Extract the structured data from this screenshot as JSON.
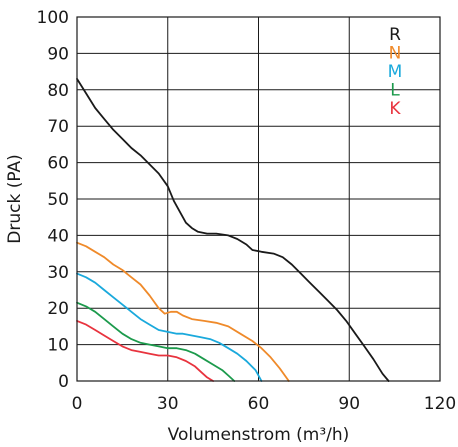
{
  "chart_data": {
    "type": "line",
    "title": "",
    "xlabel": "Volumenstrom (m³/h)",
    "ylabel": "Druck (PA)",
    "xlim": [
      0,
      120
    ],
    "ylim": [
      0,
      100
    ],
    "x_ticks": [
      "0",
      "30",
      "60",
      "90",
      "120"
    ],
    "y_ticks": [
      "0",
      "10",
      "20",
      "30",
      "40",
      "50",
      "60",
      "70",
      "80",
      "90",
      "100"
    ],
    "grid": true,
    "legend_position": "top-right",
    "series": [
      {
        "name": "R",
        "color": "#1a1a1a",
        "points": [
          [
            0,
            83
          ],
          [
            3,
            79
          ],
          [
            6,
            75
          ],
          [
            9,
            72
          ],
          [
            12,
            69
          ],
          [
            15,
            66.5
          ],
          [
            18,
            64
          ],
          [
            21,
            62
          ],
          [
            24,
            59.5
          ],
          [
            27,
            57
          ],
          [
            30,
            53.5
          ],
          [
            32,
            49.5
          ],
          [
            34,
            46.5
          ],
          [
            36,
            43.5
          ],
          [
            38,
            42
          ],
          [
            40,
            41
          ],
          [
            43,
            40.5
          ],
          [
            46,
            40.5
          ],
          [
            50,
            40
          ],
          [
            53,
            39
          ],
          [
            56,
            37.5
          ],
          [
            58,
            36
          ],
          [
            61,
            35.5
          ],
          [
            65,
            35
          ],
          [
            68,
            34
          ],
          [
            71,
            32
          ],
          [
            74,
            29.5
          ],
          [
            77,
            27
          ],
          [
            80,
            24.5
          ],
          [
            83,
            22
          ],
          [
            86,
            19.5
          ],
          [
            89,
            16.5
          ],
          [
            92,
            13
          ],
          [
            95,
            9.5
          ],
          [
            98,
            6
          ],
          [
            101,
            2
          ],
          [
            103,
            0
          ]
        ]
      },
      {
        "name": "N",
        "color": "#ef8a2a",
        "points": [
          [
            0,
            38
          ],
          [
            3,
            37
          ],
          [
            6,
            35.5
          ],
          [
            9,
            34
          ],
          [
            12,
            32
          ],
          [
            15,
            30.5
          ],
          [
            18,
            28.5
          ],
          [
            21,
            26.5
          ],
          [
            24,
            23.5
          ],
          [
            27,
            20
          ],
          [
            29,
            18.5
          ],
          [
            31,
            19
          ],
          [
            33,
            19
          ],
          [
            35,
            18
          ],
          [
            38,
            17
          ],
          [
            42,
            16.5
          ],
          [
            46,
            16
          ],
          [
            50,
            15
          ],
          [
            54,
            13
          ],
          [
            58,
            11
          ],
          [
            61,
            9
          ],
          [
            64,
            6.5
          ],
          [
            67,
            3.5
          ],
          [
            70,
            0
          ]
        ]
      },
      {
        "name": "M",
        "color": "#1aa9dc",
        "points": [
          [
            0,
            29.5
          ],
          [
            3,
            28.5
          ],
          [
            6,
            27
          ],
          [
            9,
            25
          ],
          [
            12,
            23
          ],
          [
            15,
            21
          ],
          [
            18,
            19
          ],
          [
            21,
            17
          ],
          [
            24,
            15.5
          ],
          [
            27,
            14
          ],
          [
            30,
            13.5
          ],
          [
            33,
            13
          ],
          [
            35,
            13
          ],
          [
            38,
            12.5
          ],
          [
            41,
            12
          ],
          [
            44,
            11.5
          ],
          [
            47,
            10.5
          ],
          [
            50,
            9
          ],
          [
            53,
            7.5
          ],
          [
            56,
            5.5
          ],
          [
            59,
            3
          ],
          [
            61,
            0
          ]
        ]
      },
      {
        "name": "L",
        "color": "#1c9a4c",
        "points": [
          [
            0,
            21.5
          ],
          [
            3,
            20.5
          ],
          [
            6,
            19
          ],
          [
            9,
            17
          ],
          [
            12,
            15
          ],
          [
            15,
            13
          ],
          [
            18,
            11.5
          ],
          [
            21,
            10.5
          ],
          [
            24,
            10
          ],
          [
            27,
            9.5
          ],
          [
            30,
            9
          ],
          [
            33,
            9
          ],
          [
            36,
            8.5
          ],
          [
            39,
            7.5
          ],
          [
            42,
            6
          ],
          [
            45,
            4.5
          ],
          [
            48,
            3
          ],
          [
            50,
            1.5
          ],
          [
            52,
            0
          ]
        ]
      },
      {
        "name": "K",
        "color": "#e8333e",
        "points": [
          [
            0,
            16.5
          ],
          [
            3,
            15.5
          ],
          [
            6,
            14
          ],
          [
            9,
            12.5
          ],
          [
            12,
            11
          ],
          [
            15,
            9.5
          ],
          [
            18,
            8.5
          ],
          [
            21,
            8
          ],
          [
            24,
            7.5
          ],
          [
            27,
            7
          ],
          [
            30,
            7
          ],
          [
            33,
            6.5
          ],
          [
            36,
            5.5
          ],
          [
            39,
            4
          ],
          [
            41,
            2.5
          ],
          [
            43,
            1
          ],
          [
            45,
            0
          ]
        ]
      }
    ]
  }
}
